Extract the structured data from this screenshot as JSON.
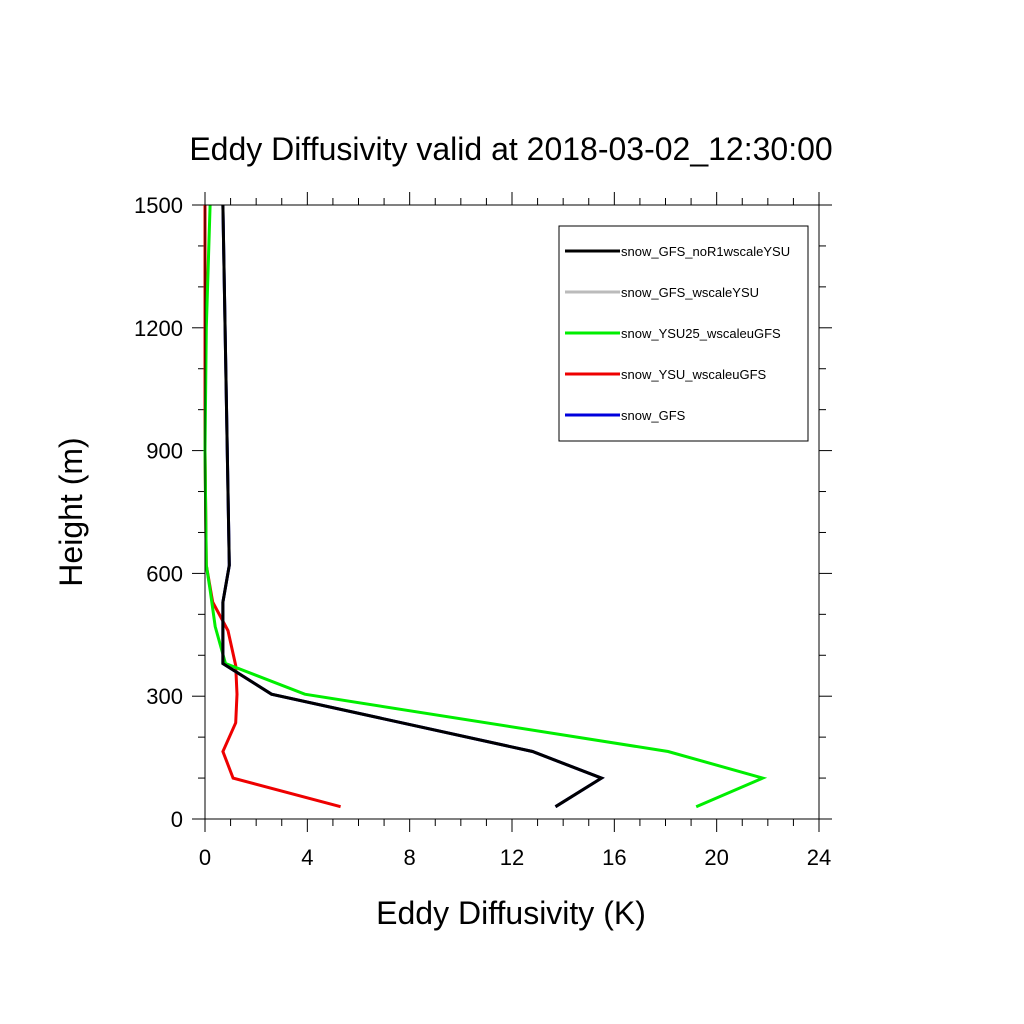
{
  "chart_data": {
    "type": "line",
    "title": "Eddy Diffusivity valid at 2018-03-02_12:30:00",
    "xlabel": "Eddy Diffusivity (K)",
    "ylabel": "Height (m)",
    "xlim": [
      0,
      24
    ],
    "ylim": [
      0,
      1500
    ],
    "xticks": [
      0,
      4,
      8,
      12,
      16,
      20,
      24
    ],
    "yticks": [
      0,
      300,
      600,
      900,
      1200,
      1500
    ],
    "grid": false,
    "legend_position": "top-right",
    "series": [
      {
        "name": "snow_GFS_noR1wscaleYSU",
        "color": "#000000",
        "points": [
          [
            13.7,
            30
          ],
          [
            15.5,
            100
          ],
          [
            12.8,
            165
          ],
          [
            2.6,
            305
          ],
          [
            0.7,
            380
          ],
          [
            0.7,
            530
          ],
          [
            0.95,
            620
          ],
          [
            0.7,
            1500
          ]
        ]
      },
      {
        "name": "snow_GFS_wscaleYSU",
        "color": "#bbbbbb",
        "points": [
          [
            13.7,
            30
          ],
          [
            15.5,
            100
          ],
          [
            12.8,
            165
          ],
          [
            2.6,
            305
          ],
          [
            0.7,
            380
          ],
          [
            0.7,
            530
          ],
          [
            0.95,
            620
          ],
          [
            0.7,
            1500
          ]
        ]
      },
      {
        "name": "snow_YSU25_wscaleuGFS",
        "color": "#00ee00",
        "points": [
          [
            19.2,
            30
          ],
          [
            21.8,
            100
          ],
          [
            18.1,
            165
          ],
          [
            3.9,
            305
          ],
          [
            0.8,
            380
          ],
          [
            0.4,
            470
          ],
          [
            0.2,
            560
          ],
          [
            0.05,
            620
          ],
          [
            0.0,
            900
          ],
          [
            0.05,
            1200
          ],
          [
            0.2,
            1500
          ]
        ]
      },
      {
        "name": "snow_YSU_wscaleuGFS",
        "color": "#ee0000",
        "points": [
          [
            5.3,
            30
          ],
          [
            1.1,
            100
          ],
          [
            0.7,
            165
          ],
          [
            1.2,
            235
          ],
          [
            1.25,
            305
          ],
          [
            1.2,
            375
          ],
          [
            0.9,
            460
          ],
          [
            0.3,
            530
          ],
          [
            0.05,
            620
          ],
          [
            0.0,
            900
          ],
          [
            0.0,
            1500
          ]
        ]
      },
      {
        "name": "snow_GFS",
        "color": "#0000dd",
        "points": [
          [
            13.7,
            30
          ],
          [
            15.5,
            100
          ],
          [
            12.8,
            165
          ],
          [
            2.6,
            305
          ],
          [
            0.7,
            380
          ],
          [
            0.7,
            530
          ],
          [
            0.95,
            620
          ],
          [
            0.7,
            1500
          ]
        ]
      }
    ]
  }
}
